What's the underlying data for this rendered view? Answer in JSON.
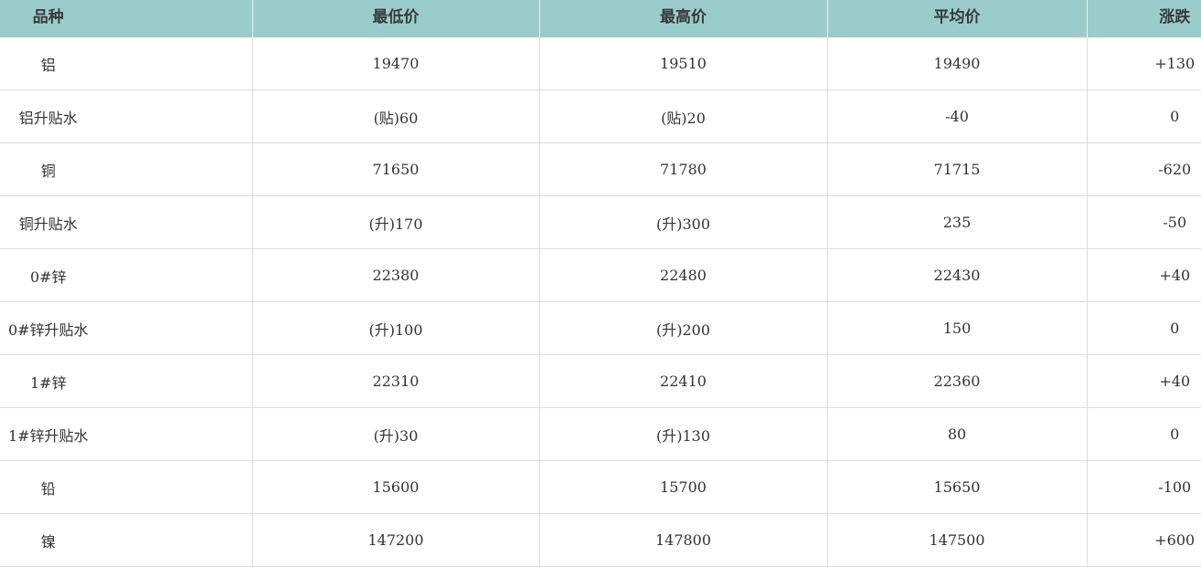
{
  "table": {
    "headers": [
      "品种",
      "最低价",
      "最高价",
      "平均价",
      "涨跌"
    ],
    "rows": [
      [
        "铝",
        "19470",
        "19510",
        "19490",
        "+130"
      ],
      [
        "铝升贴水",
        "(贴)60",
        "(贴)20",
        "-40",
        "0"
      ],
      [
        "铜",
        "71650",
        "71780",
        "71715",
        "-620"
      ],
      [
        "铜升贴水",
        "(升)170",
        "(升)300",
        "235",
        "-50"
      ],
      [
        "0#锌",
        "22380",
        "22480",
        "22430",
        "+40"
      ],
      [
        "0#锌升贴水",
        "(升)100",
        "(升)200",
        "150",
        "0"
      ],
      [
        "1#锌",
        "22310",
        "22410",
        "22360",
        "+40"
      ],
      [
        "1#锌升贴水",
        "(升)30",
        "(升)130",
        "80",
        "0"
      ],
      [
        "铅",
        "15600",
        "15700",
        "15650",
        "-100"
      ],
      [
        "镍",
        "147200",
        "147800",
        "147500",
        "+600"
      ]
    ]
  },
  "colors": {
    "header_bg": "#9acccc",
    "text": "#333333",
    "border": "#dddddd"
  }
}
